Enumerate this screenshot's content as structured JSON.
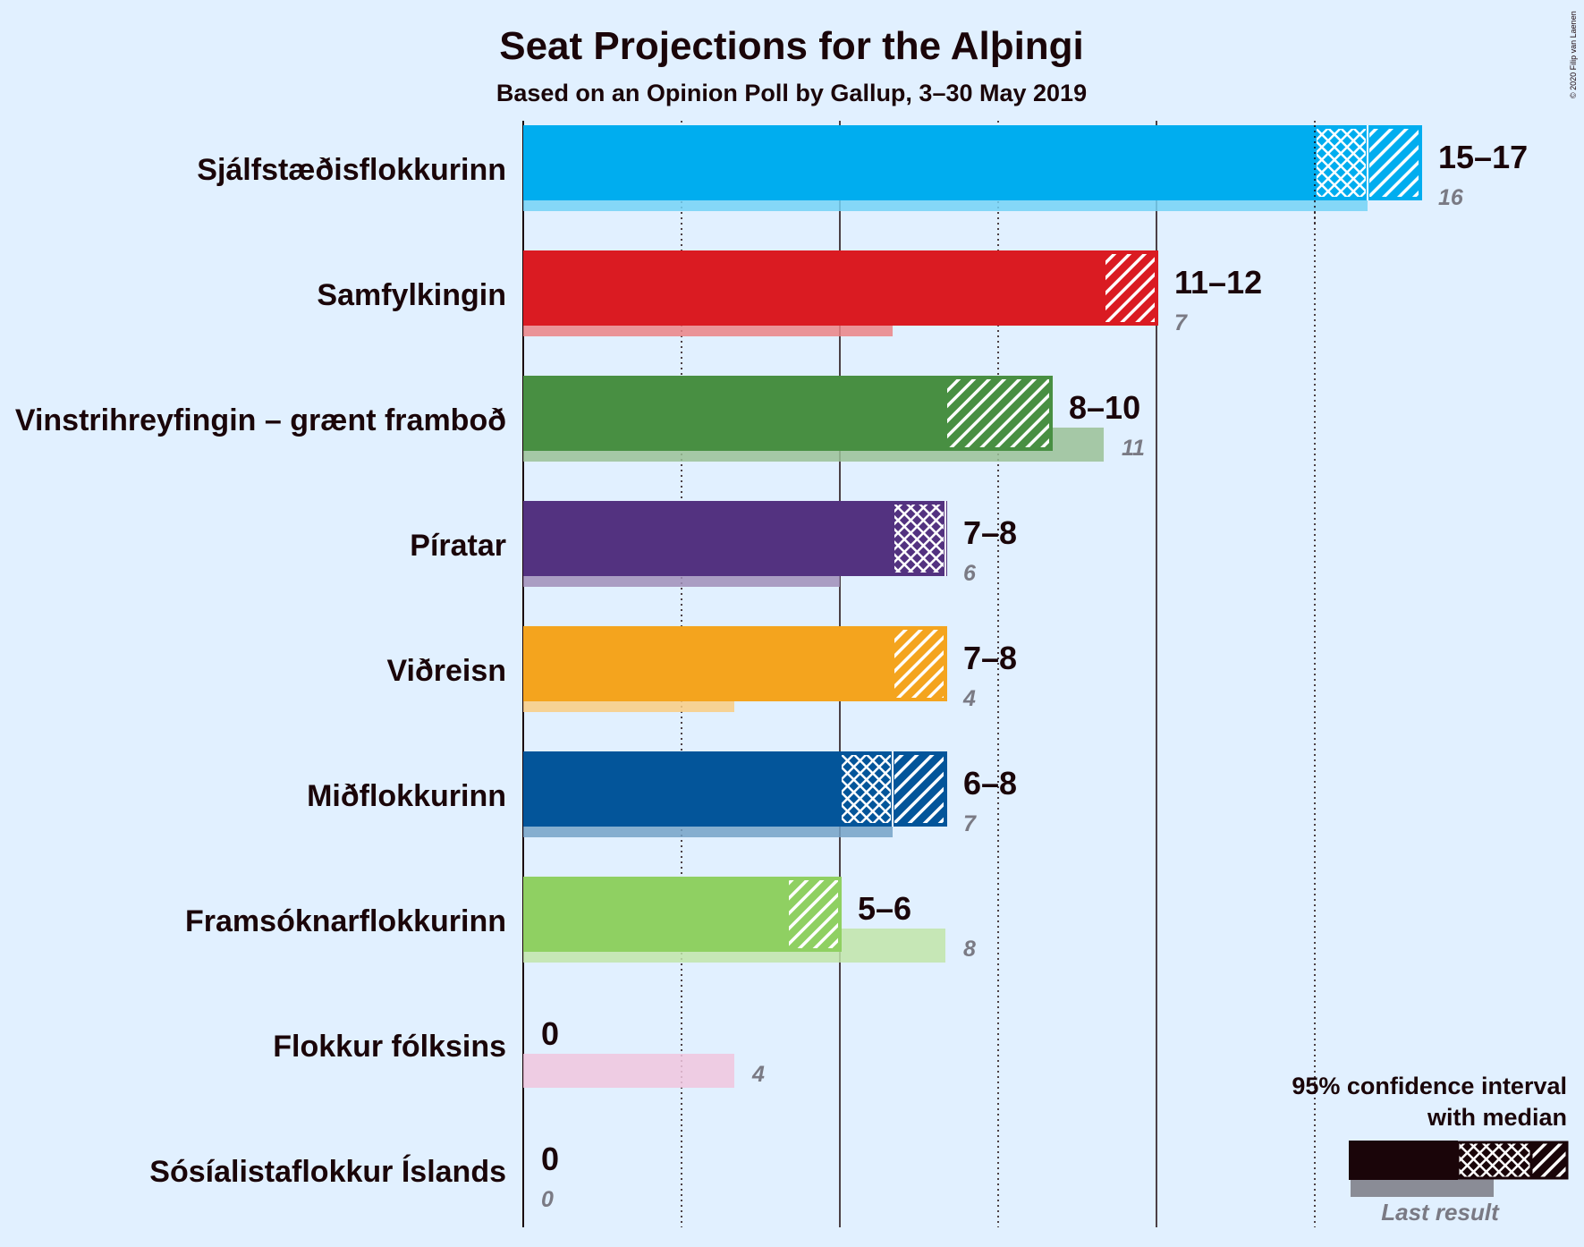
{
  "chart_data": {
    "type": "bar",
    "title": "Seat Projections for the Alþingi",
    "subtitle": "Based on an Opinion Poll by Gallup, 3–30 May 2019",
    "copyright": "© 2020 Filip van Laenen",
    "xlim": [
      0,
      17
    ],
    "gridlines": [
      3,
      6,
      9,
      12,
      15
    ],
    "gridline_style": {
      "3": "dotted",
      "6": "solid",
      "9": "dotted",
      "12": "solid",
      "15": "dotted"
    },
    "series": [
      {
        "name": "95% confidence interval",
        "role": "projection"
      },
      {
        "name": "Last result",
        "role": "last_result"
      }
    ],
    "parties": [
      {
        "name": "Sjálfstæðisflokkurinn",
        "color": "#00adef",
        "low": 15,
        "median": 16,
        "high": 17,
        "range_label": "15–17",
        "last": 16,
        "last_label": "16"
      },
      {
        "name": "Samfylkingin",
        "color": "#da1b22",
        "low": 11,
        "median": 11,
        "high": 12,
        "range_label": "11–12",
        "last": 7,
        "last_label": "7"
      },
      {
        "name": "Vinstrihreyfingin – grænt framboð",
        "color": "#488f42",
        "low": 8,
        "median": 8,
        "high": 10,
        "range_label": "8–10",
        "last": 11,
        "last_label": "11"
      },
      {
        "name": "Píratar",
        "color": "#533280",
        "low": 7,
        "median": 8,
        "high": 8,
        "range_label": "7–8",
        "last": 6,
        "last_label": "6"
      },
      {
        "name": "Viðreisn",
        "color": "#f4a41e",
        "low": 7,
        "median": 7,
        "high": 8,
        "range_label": "7–8",
        "last": 4,
        "last_label": "4"
      },
      {
        "name": "Miðflokkurinn",
        "color": "#03559a",
        "low": 6,
        "median": 7,
        "high": 8,
        "range_label": "6–8",
        "last": 7,
        "last_label": "7"
      },
      {
        "name": "Framsóknarflokkurinn",
        "color": "#8fd062",
        "low": 5,
        "median": 5,
        "high": 6,
        "range_label": "5–6",
        "last": 8,
        "last_label": "8"
      },
      {
        "name": "Flokkur fólksins",
        "color": "#e395c3",
        "low": 0,
        "median": 0,
        "high": 0,
        "range_label": "0",
        "last": 4,
        "last_label": "4"
      },
      {
        "name": "Sósíalistaflokkur Íslands",
        "color": "#ea1f27",
        "low": 0,
        "median": 0,
        "high": 0,
        "range_label": "0",
        "last": 0,
        "last_label": "0"
      }
    ],
    "legend": {
      "line1": "95% confidence interval",
      "line2": "with median",
      "last_result": "Last result",
      "placement": "bottom-right"
    }
  }
}
